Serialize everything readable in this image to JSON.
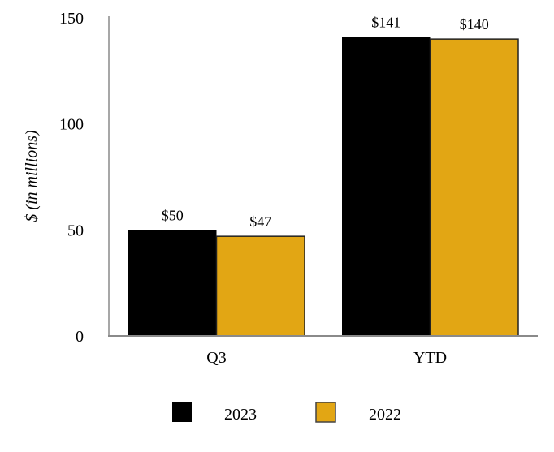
{
  "chart_data": {
    "type": "bar",
    "title": "",
    "xlabel": "",
    "ylabel": "$ (in millions)",
    "ylim": [
      0,
      150
    ],
    "yticks": [
      0,
      50,
      100,
      150
    ],
    "categories": [
      "Q3",
      "YTD"
    ],
    "series": [
      {
        "name": "2023",
        "values": [
          50,
          141
        ],
        "labels": [
          "$50",
          "$141"
        ],
        "color": "#000000"
      },
      {
        "name": "2022",
        "values": [
          47,
          140
        ],
        "labels": [
          "$47",
          "$140"
        ],
        "color": "#E2A614"
      }
    ],
    "grid": false,
    "legend": "bottom"
  }
}
